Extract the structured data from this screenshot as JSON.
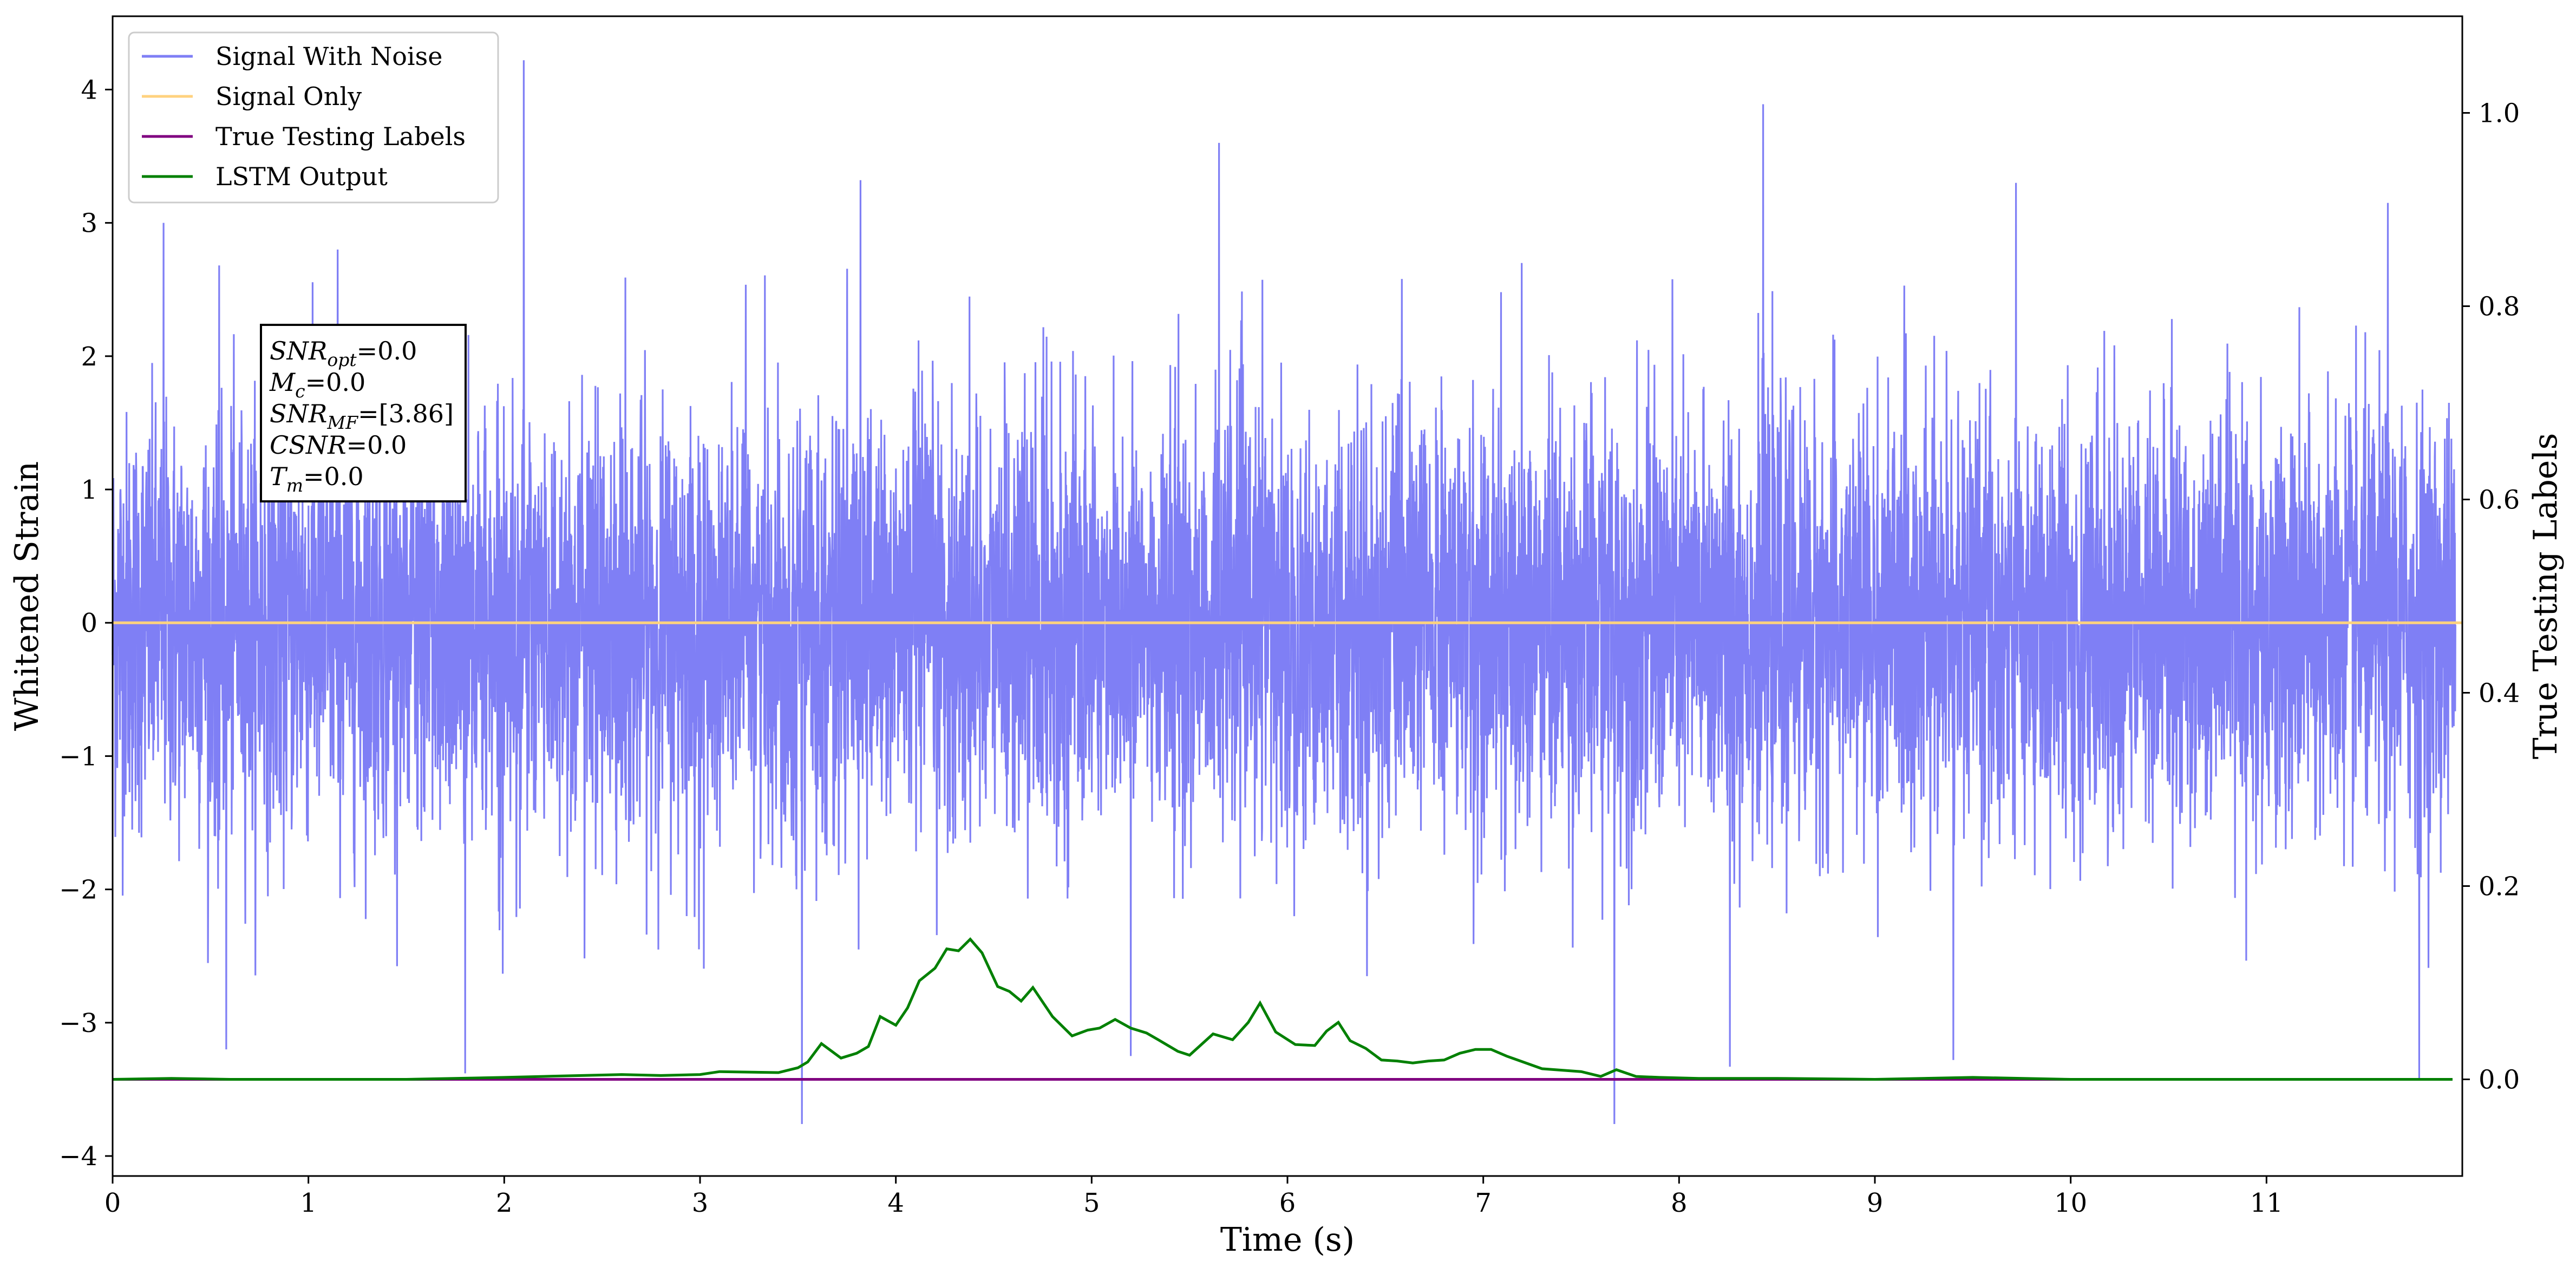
{
  "chart_data": {
    "type": "line",
    "xlabel": "Time (s)",
    "ylabel": "Whitened Strain",
    "ylabel_right": "True Testing Labels",
    "xlim": [
      0,
      12
    ],
    "ylim": [
      -4.15,
      4.55
    ],
    "ylim_right": [
      -0.1,
      1.1
    ],
    "x_ticks": [
      0,
      1,
      2,
      3,
      4,
      5,
      6,
      7,
      8,
      9,
      10,
      11
    ],
    "y_ticks": [
      -4,
      -3,
      -2,
      -1,
      0,
      1,
      2,
      3,
      4
    ],
    "y_ticks_right": [
      0.0,
      0.2,
      0.4,
      0.6,
      0.8,
      1.0
    ],
    "x_tick_labels": [
      "0",
      "1",
      "2",
      "3",
      "4",
      "5",
      "6",
      "7",
      "8",
      "9",
      "10",
      "11"
    ],
    "y_tick_labels": [
      "−4",
      "−3",
      "−2",
      "−1",
      "0",
      "1",
      "2",
      "3",
      "4"
    ],
    "y_tick_labels_right": [
      "0.0",
      "0.2",
      "0.4",
      "0.6",
      "0.8",
      "1.0"
    ],
    "legend": {
      "placement": "top-left",
      "entries": [
        {
          "label": "Signal With Noise",
          "color": "#7f7ff5"
        },
        {
          "label": "Signal Only",
          "color": "#ffd27f"
        },
        {
          "label": "True Testing Labels",
          "color": "#800080"
        },
        {
          "label": "LSTM Output",
          "color": "#008000"
        }
      ]
    },
    "annotation": {
      "lines": [
        "SNRopt=0.0",
        "Mc=0.0",
        "SNRMF=[3.86]",
        "CSNR=0.0",
        "Tm=0.0"
      ]
    },
    "series": [
      {
        "name": "Signal With Noise",
        "axis": "left",
        "color": "#7f7ff5",
        "note_style": "dense noise, std≈0.75",
        "spikes": [
          {
            "x": 0.26,
            "y": 3.0
          },
          {
            "x": 1.15,
            "y": 2.8
          },
          {
            "x": 2.1,
            "y": 4.22
          },
          {
            "x": 3.82,
            "y": 3.32
          },
          {
            "x": 5.65,
            "y": 3.6
          },
          {
            "x": 8.43,
            "y": 3.89
          },
          {
            "x": 9.72,
            "y": 3.3
          },
          {
            "x": 11.62,
            "y": 3.15
          },
          {
            "x": 0.58,
            "y": -3.2
          },
          {
            "x": 1.8,
            "y": -3.38
          },
          {
            "x": 3.52,
            "y": -3.76
          },
          {
            "x": 7.67,
            "y": -3.76
          },
          {
            "x": 8.26,
            "y": -3.33
          },
          {
            "x": 9.4,
            "y": -3.28
          },
          {
            "x": 11.78,
            "y": -3.42
          },
          {
            "x": 5.2,
            "y": -3.25
          }
        ]
      },
      {
        "name": "Signal Only",
        "axis": "left",
        "color": "#ffd27f",
        "x": [
          0,
          12
        ],
        "y": [
          0,
          0
        ]
      },
      {
        "name": "True Testing Labels",
        "axis": "right",
        "color": "#800080",
        "x": [
          0,
          11.95
        ],
        "y": [
          0,
          0
        ]
      },
      {
        "name": "LSTM Output",
        "axis": "right",
        "color": "#008000",
        "x": [
          0,
          0.3,
          0.6,
          1.0,
          1.5,
          2.0,
          2.2,
          2.6,
          2.8,
          3.0,
          3.1,
          3.4,
          3.5,
          3.55,
          3.62,
          3.72,
          3.8,
          3.86,
          3.92,
          4.0,
          4.06,
          4.12,
          4.2,
          4.26,
          4.32,
          4.38,
          4.44,
          4.52,
          4.58,
          4.64,
          4.7,
          4.8,
          4.9,
          4.98,
          5.04,
          5.12,
          5.2,
          5.28,
          5.34,
          5.44,
          5.5,
          5.62,
          5.72,
          5.8,
          5.86,
          5.94,
          6.04,
          6.14,
          6.2,
          6.26,
          6.32,
          6.4,
          6.48,
          6.56,
          6.64,
          6.72,
          6.8,
          6.88,
          6.96,
          7.04,
          7.12,
          7.3,
          7.5,
          7.6,
          7.68,
          7.78,
          7.9,
          8.1,
          8.5,
          9.0,
          9.5,
          10.0,
          11.0,
          11.95
        ],
        "y": [
          0.0,
          0.001,
          0.0,
          0.0,
          0.0,
          0.002,
          0.003,
          0.005,
          0.004,
          0.005,
          0.008,
          0.007,
          0.012,
          0.018,
          0.037,
          0.022,
          0.027,
          0.034,
          0.065,
          0.056,
          0.074,
          0.102,
          0.115,
          0.135,
          0.133,
          0.145,
          0.131,
          0.096,
          0.091,
          0.081,
          0.095,
          0.065,
          0.045,
          0.051,
          0.053,
          0.062,
          0.053,
          0.048,
          0.041,
          0.029,
          0.025,
          0.047,
          0.041,
          0.059,
          0.079,
          0.049,
          0.036,
          0.035,
          0.05,
          0.059,
          0.04,
          0.032,
          0.02,
          0.019,
          0.017,
          0.019,
          0.02,
          0.027,
          0.031,
          0.031,
          0.024,
          0.011,
          0.008,
          0.003,
          0.01,
          0.003,
          0.002,
          0.001,
          0.001,
          0.0,
          0.002,
          0.0,
          0.0,
          0.0
        ]
      }
    ]
  }
}
